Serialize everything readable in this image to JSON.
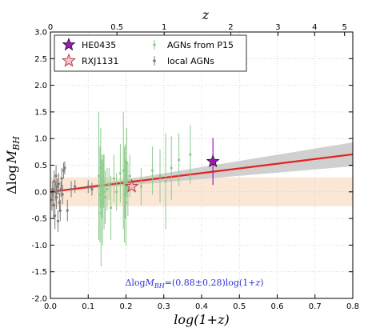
{
  "chart_data": {
    "type": "scatter",
    "xlabel": "log(1+z)",
    "ylabel": "Δlog M_BH",
    "top_axis_label": "z",
    "xlim": [
      0.0,
      0.8
    ],
    "ylim": [
      -2.0,
      3.0
    ],
    "x_ticks": [
      "0.0",
      "0.1",
      "0.2",
      "0.3",
      "0.4",
      "0.5",
      "0.6",
      "0.7",
      "0.8"
    ],
    "y_ticks": [
      "-2.0",
      "-1.5",
      "-1.0",
      "-0.5",
      "0.0",
      "0.5",
      "1.0",
      "1.5",
      "2.0",
      "2.5",
      "3.0"
    ],
    "top_ticks": [
      {
        "z": 0,
        "label": "0"
      },
      {
        "z": 0.5,
        "label": "0.5"
      },
      {
        "z": 1,
        "label": "1"
      },
      {
        "z": 2,
        "label": "2"
      },
      {
        "z": 3,
        "label": "3"
      },
      {
        "z": 4,
        "label": "4"
      },
      {
        "z": 5,
        "label": "5"
      }
    ],
    "band": {
      "y_low": -0.27,
      "y_high": 0.27,
      "color": "#fbe7d6"
    },
    "fit": {
      "slope": 0.88,
      "slope_err": 0.28,
      "color": "#e8201c",
      "shade": "#c8c8c8"
    },
    "annotation": {
      "prefix": "Δlog",
      "var": "M",
      "sub": "BH",
      "rest": "=(0.88±0.28)log(1+",
      "var2": "z",
      "close": ")",
      "color": "#2d33d6"
    },
    "series": [
      {
        "name": "HE0435",
        "marker": "star-filled",
        "color": "#9c18b4",
        "points": [
          {
            "x": 0.43,
            "y": 0.57,
            "err": 0.44
          }
        ]
      },
      {
        "name": "RXJ1131",
        "marker": "star-open",
        "color": "#f2a2a8",
        "points": [
          {
            "x": 0.215,
            "y": 0.1,
            "err": 0.0
          }
        ]
      },
      {
        "name": "AGNs from P15",
        "marker": "point",
        "color": "#8ccb8c",
        "points": [
          {
            "x": 0.128,
            "y": 0.3,
            "err": 1.2
          },
          {
            "x": 0.131,
            "y": -0.05,
            "err": 0.9
          },
          {
            "x": 0.133,
            "y": 0.45,
            "err": 0.75
          },
          {
            "x": 0.134,
            "y": -0.4,
            "err": 1.0
          },
          {
            "x": 0.136,
            "y": 0.1,
            "err": 0.6
          },
          {
            "x": 0.138,
            "y": -0.2,
            "err": 0.8
          },
          {
            "x": 0.14,
            "y": 0.2,
            "err": 0.5
          },
          {
            "x": 0.142,
            "y": 0.0,
            "err": 0.7
          },
          {
            "x": 0.145,
            "y": -0.1,
            "err": 0.5
          },
          {
            "x": 0.15,
            "y": 0.05,
            "err": 0.4
          },
          {
            "x": 0.155,
            "y": 0.15,
            "err": 0.3
          },
          {
            "x": 0.16,
            "y": -0.3,
            "err": 0.6
          },
          {
            "x": 0.168,
            "y": 0.25,
            "err": 0.45
          },
          {
            "x": 0.175,
            "y": 0.0,
            "err": 0.35
          },
          {
            "x": 0.185,
            "y": 0.35,
            "err": 0.55
          },
          {
            "x": 0.193,
            "y": 0.4,
            "err": 1.1
          },
          {
            "x": 0.196,
            "y": -0.05,
            "err": 0.9
          },
          {
            "x": 0.198,
            "y": 0.2,
            "err": 0.7
          },
          {
            "x": 0.2,
            "y": -0.2,
            "err": 0.8
          },
          {
            "x": 0.202,
            "y": 0.55,
            "err": 0.65
          },
          {
            "x": 0.205,
            "y": 0.05,
            "err": 0.5
          },
          {
            "x": 0.21,
            "y": 0.3,
            "err": 0.4
          },
          {
            "x": 0.24,
            "y": 0.1,
            "err": 0.35
          },
          {
            "x": 0.27,
            "y": 0.4,
            "err": 0.45
          },
          {
            "x": 0.29,
            "y": 0.3,
            "err": 0.5
          },
          {
            "x": 0.305,
            "y": 0.2,
            "err": 0.9
          },
          {
            "x": 0.32,
            "y": 0.45,
            "err": 0.6
          },
          {
            "x": 0.34,
            "y": 0.6,
            "err": 0.5
          },
          {
            "x": 0.37,
            "y": 0.7,
            "err": 0.55
          }
        ]
      },
      {
        "name": "local AGNs",
        "marker": "point",
        "color": "#7a7a7a",
        "points": [
          {
            "x": 0.004,
            "y": -0.15,
            "err": 0.2
          },
          {
            "x": 0.006,
            "y": 0.05,
            "err": 0.15
          },
          {
            "x": 0.008,
            "y": -0.25,
            "err": 0.25
          },
          {
            "x": 0.01,
            "y": 0.2,
            "err": 0.2
          },
          {
            "x": 0.012,
            "y": -0.45,
            "err": 0.25
          },
          {
            "x": 0.013,
            "y": 0.0,
            "err": 0.18
          },
          {
            "x": 0.015,
            "y": 0.3,
            "err": 0.2
          },
          {
            "x": 0.016,
            "y": -0.1,
            "err": 0.22
          },
          {
            "x": 0.018,
            "y": 0.1,
            "err": 0.15
          },
          {
            "x": 0.02,
            "y": -0.55,
            "err": 0.2
          },
          {
            "x": 0.022,
            "y": 0.15,
            "err": 0.2
          },
          {
            "x": 0.024,
            "y": -0.2,
            "err": 0.18
          },
          {
            "x": 0.026,
            "y": -0.35,
            "err": 0.2
          },
          {
            "x": 0.028,
            "y": 0.05,
            "err": 0.15
          },
          {
            "x": 0.03,
            "y": 0.25,
            "err": 0.2
          },
          {
            "x": 0.032,
            "y": -0.05,
            "err": 0.18
          },
          {
            "x": 0.035,
            "y": 0.4,
            "err": 0.15
          },
          {
            "x": 0.038,
            "y": 0.45,
            "err": 0.12
          },
          {
            "x": 0.045,
            "y": -0.35,
            "err": 0.2
          },
          {
            "x": 0.055,
            "y": 0.05,
            "err": 0.15
          },
          {
            "x": 0.065,
            "y": 0.1,
            "err": 0.12
          },
          {
            "x": 0.1,
            "y": 0.1,
            "err": 0.12
          },
          {
            "x": 0.11,
            "y": 0.05,
            "err": 0.12
          }
        ]
      }
    ]
  }
}
